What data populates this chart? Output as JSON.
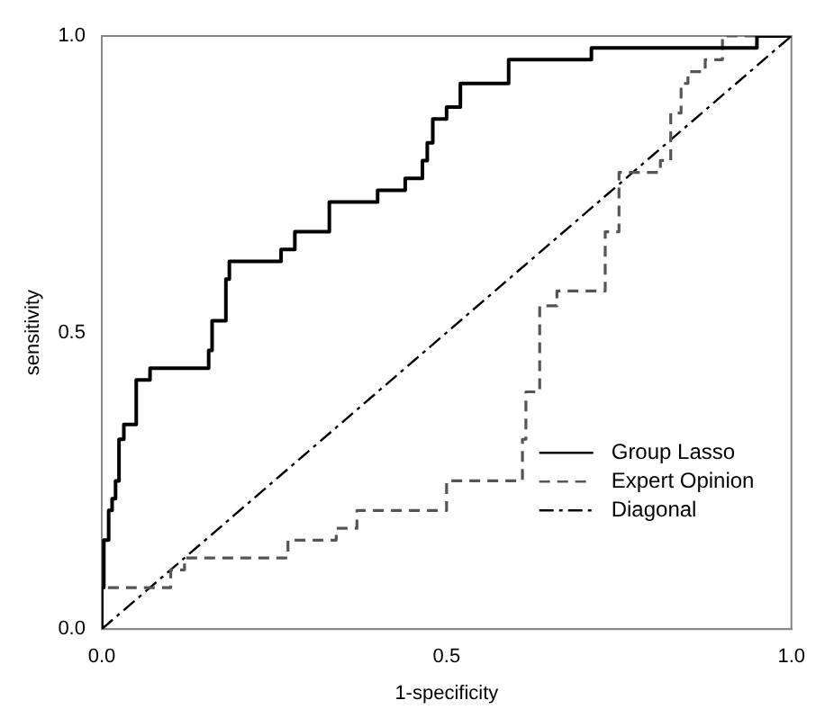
{
  "chart_data": {
    "type": "step",
    "xlabel": "1-specificity",
    "ylabel": "sensitivity",
    "xlim": [
      0,
      1
    ],
    "ylim": [
      0,
      1
    ],
    "xticks": [
      {
        "value": 0,
        "label": "0.0"
      },
      {
        "value": 0.5,
        "label": "0.5"
      },
      {
        "value": 1,
        "label": "1.0"
      }
    ],
    "yticks": [
      {
        "value": 0,
        "label": "0.0"
      },
      {
        "value": 0.5,
        "label": "0.5"
      },
      {
        "value": 1,
        "label": "1.0"
      }
    ],
    "grid": false,
    "legend": "bottom right",
    "series": [
      {
        "name": "Group Lasso",
        "color": "#000000",
        "line_style": "solid",
        "x": [
          0,
          0.003,
          0.01,
          0.015,
          0.02,
          0.025,
          0.032,
          0.05,
          0.07,
          0.155,
          0.16,
          0.18,
          0.185,
          0.26,
          0.28,
          0.33,
          0.4,
          0.44,
          0.465,
          0.472,
          0.48,
          0.5,
          0.52,
          0.59,
          0.71,
          0.95,
          0.96,
          1
        ],
        "values": [
          0,
          0.07,
          0.15,
          0.2,
          0.22,
          0.25,
          0.32,
          0.345,
          0.42,
          0.44,
          0.47,
          0.52,
          0.59,
          0.62,
          0.64,
          0.67,
          0.72,
          0.74,
          0.76,
          0.79,
          0.82,
          0.86,
          0.88,
          0.92,
          0.96,
          0.98,
          1,
          1
        ]
      },
      {
        "name": "Expert Opinion",
        "color": "#555555",
        "line_style": "dashed",
        "x": [
          0,
          0.1,
          0.12,
          0.27,
          0.34,
          0.37,
          0.5,
          0.61,
          0.615,
          0.635,
          0.66,
          0.73,
          0.75,
          0.81,
          0.825,
          0.84,
          0.85,
          0.875,
          0.9,
          0.955,
          1
        ],
        "values": [
          0.05,
          0.07,
          0.1,
          0.12,
          0.15,
          0.17,
          0.2,
          0.25,
          0.32,
          0.4,
          0.545,
          0.57,
          0.67,
          0.77,
          0.79,
          0.87,
          0.92,
          0.94,
          0.96,
          1,
          1
        ]
      },
      {
        "name": "Diagonal",
        "type": "line",
        "color": "#000000",
        "line_style": "dashdot",
        "x": [
          0,
          1
        ],
        "values": [
          0,
          1
        ]
      }
    ]
  }
}
